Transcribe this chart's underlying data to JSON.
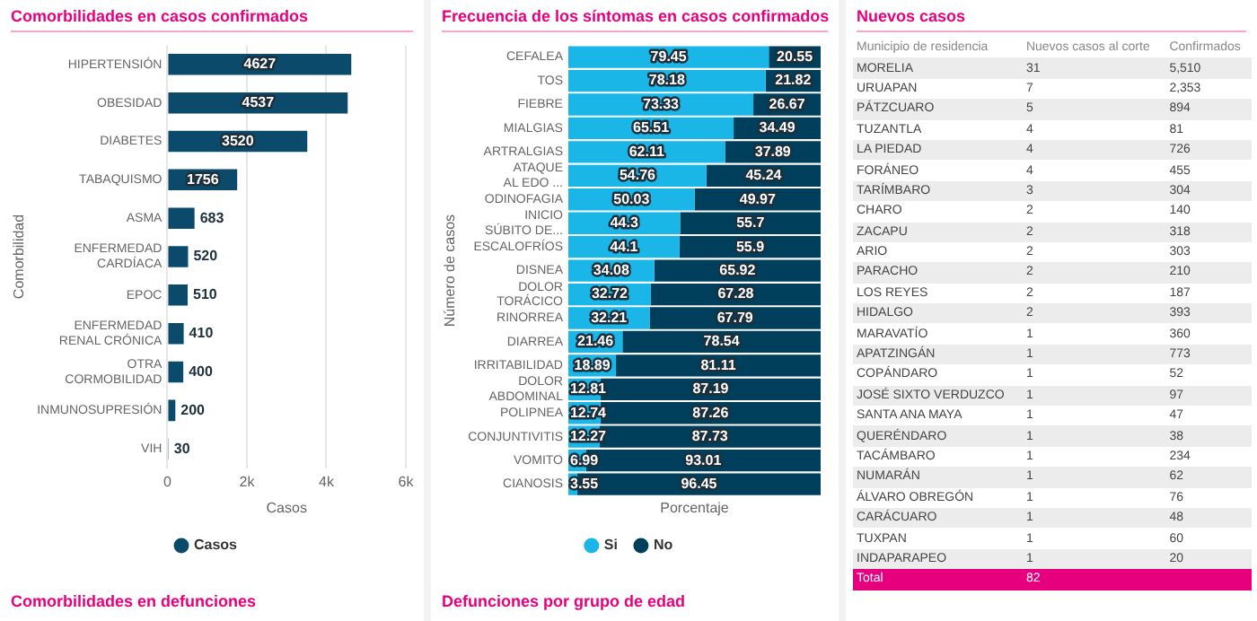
{
  "chart_data": [
    {
      "type": "bar",
      "orientation": "horizontal",
      "title": "Comorbilidades en casos confirmados",
      "xlabel": "Casos",
      "ylabel": "Comorbilidad",
      "categories": [
        "HIPERTENSIÓN",
        "OBESIDAD",
        "DIABETES",
        "TABAQUISMO",
        "ASMA",
        "ENFERMEDAD CARDÍACA",
        "EPOC",
        "ENFERMEDAD RENAL CRÓNICA",
        "OTRA CORMOBILIDAD",
        "INMUNOSUPRESIÓN",
        "VIH"
      ],
      "series": [
        {
          "name": "Casos",
          "color": "#0b4a6b",
          "values": [
            4627,
            4537,
            3520,
            1756,
            683,
            520,
            510,
            410,
            400,
            200,
            30
          ]
        }
      ],
      "xlim": [
        0,
        6000
      ],
      "xticks": [
        0,
        {
          "value": 2000,
          "label": "2k"
        },
        {
          "value": 4000,
          "label": "4k"
        },
        {
          "value": 6000,
          "label": "6k"
        }
      ],
      "grid": "x",
      "legend": "bottom",
      "data_labels": true,
      "annotations": [
        "Comorbilidades en defunciones"
      ]
    },
    {
      "type": "bar",
      "orientation": "horizontal",
      "stacked": true,
      "title": "Frecuencia de los síntomas en casos confirmados",
      "xlabel": "Porcentaje",
      "ylabel": "Número de casos",
      "categories": [
        "CEFALEA",
        "TOS",
        "FIEBRE",
        "MIALGIAS",
        "ARTRALGIAS",
        "ATAQUE AL EDO ...",
        "ODINOFAGIA",
        "INICIO SÚBITO DE...",
        "ESCALOFRÍOS",
        "DISNEA",
        "DOLOR TORÁCICO",
        "RINORREA",
        "DIARREA",
        "IRRITABILIDAD",
        "DOLOR ABDOMINAL",
        "POLIPNEA",
        "CONJUNTIVITIS",
        "VOMITO",
        "CIANOSIS"
      ],
      "series": [
        {
          "name": "Si",
          "color": "#1ab6e8",
          "values": [
            79.45,
            78.18,
            73.33,
            65.51,
            62.11,
            54.76,
            50.03,
            44.3,
            44.1,
            34.08,
            32.72,
            32.21,
            21.46,
            18.89,
            12.81,
            12.74,
            12.27,
            6.99,
            3.55
          ]
        },
        {
          "name": "No",
          "color": "#003f5c",
          "values": [
            20.55,
            21.82,
            26.67,
            34.49,
            37.89,
            45.24,
            49.97,
            55.7,
            55.9,
            65.92,
            67.28,
            67.79,
            78.54,
            81.11,
            87.19,
            87.26,
            87.73,
            93.01,
            96.45
          ]
        }
      ],
      "xlim": [
        0,
        100
      ],
      "tick_labels": "y",
      "legend": "bottom",
      "data_labels": true,
      "annotations": [
        "Defunciones por grupo de edad"
      ]
    },
    {
      "type": "other",
      "title": "Nuevos casos",
      "xlabel": "Municipio de residencia",
      "categories": [
        "MORELIA",
        "URUAPAN",
        "PÁTZCUARO",
        "TUZANTLA",
        "LA PIEDAD",
        "FORÁNEO",
        "TARÍMBARO",
        "CHARO",
        "ZACAPU",
        "ARIO",
        "PARACHO",
        "LOS REYES",
        "HIDALGO",
        "MARAVATÍO",
        "APATZINGÁN",
        "COPÁNDARO",
        "JOSÉ SIXTO VERDUZCO",
        "SANTA ANA MAYA",
        "QUERÉNDARO",
        "TACÁMBARO",
        "NUMARÁN",
        "ÁLVARO OBREGÓN",
        "CARÁCUARO",
        "TUXPAN",
        "INDAPARAPEO"
      ],
      "series": [
        {
          "name": "Nuevos casos al corte",
          "colors": [
            "#ececec",
            "#ffffff",
            "#ececec",
            "#ffffff",
            "#ececec",
            "#ffffff",
            "#ececec",
            "#ffffff",
            "#ececec",
            "#ffffff",
            "#ececec",
            "#ffffff",
            "#ececec",
            "#ffffff",
            "#ececec",
            "#ffffff",
            "#ececec",
            "#ffffff",
            "#ececec",
            "#ffffff",
            "#ececec",
            "#ffffff",
            "#ececec",
            "#ffffff",
            "#ececec"
          ],
          "values": [
            31,
            7,
            5,
            4,
            4,
            4,
            3,
            2,
            2,
            2,
            2,
            2,
            2,
            1,
            1,
            1,
            1,
            1,
            1,
            1,
            1,
            1,
            1,
            1,
            1
          ]
        },
        {
          "name": "Confirmados",
          "colors": [
            "#ececec",
            "#ffffff",
            "#ececec",
            "#ffffff",
            "#ececec",
            "#ffffff",
            "#ececec",
            "#ffffff",
            "#ececec",
            "#ffffff",
            "#ececec",
            "#ffffff",
            "#ececec",
            "#ffffff",
            "#ececec",
            "#ffffff",
            "#ececec",
            "#ffffff",
            "#ececec",
            "#ffffff",
            "#ececec",
            "#ffffff",
            "#ececec",
            "#ffffff",
            "#ececec"
          ],
          "values": [
            5510,
            2353,
            894,
            81,
            726,
            455,
            304,
            140,
            318,
            303,
            210,
            187,
            393,
            360,
            773,
            52,
            97,
            47,
            38,
            234,
            62,
            76,
            48,
            60,
            20
          ],
          "value_labels": [
            "5,510",
            "2,353",
            "894",
            "81",
            "726",
            "455",
            "304",
            "140",
            "318",
            "303",
            "210",
            "187",
            "393",
            "360",
            "773",
            "52",
            "97",
            "47",
            "38",
            "234",
            "62",
            "76",
            "48",
            "60",
            "20"
          ]
        }
      ],
      "data_labels": true,
      "annotations": [
        "Total",
        "82"
      ]
    }
  ]
}
